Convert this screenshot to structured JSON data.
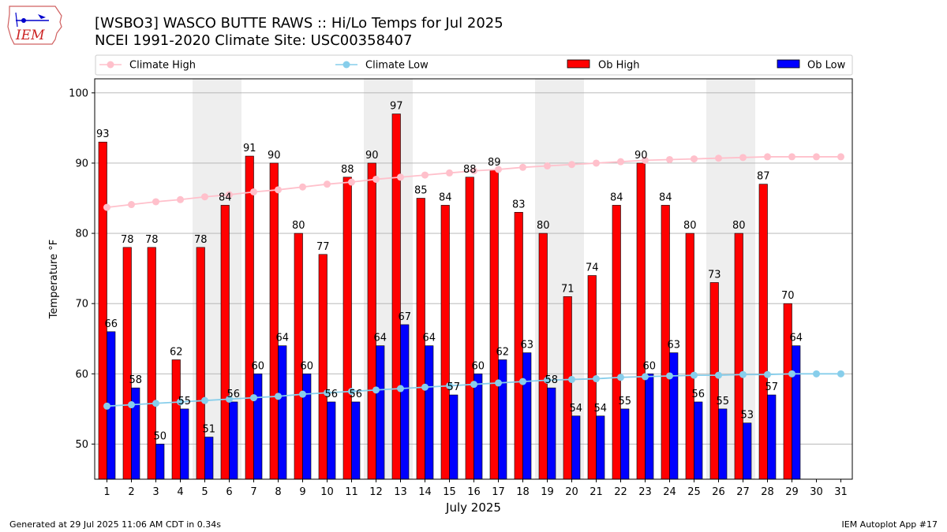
{
  "logo": {
    "text": "IEM"
  },
  "chart_data": {
    "type": "bar",
    "title_lines": [
      "[WSBO3] WASCO BUTTE RAWS :: Hi/Lo Temps for Jul 2025",
      "NCEI 1991-2020 Climate Site: USC00358407"
    ],
    "xlabel": "July 2025",
    "ylabel": "Temperature °F",
    "ylim": [
      45,
      102
    ],
    "yticks": [
      50,
      60,
      70,
      80,
      90,
      100
    ],
    "grid": "horizontal",
    "weekend_shading_days": [
      [
        5,
        6
      ],
      [
        12,
        13
      ],
      [
        19,
        20
      ],
      [
        26,
        27
      ]
    ],
    "days": [
      1,
      2,
      3,
      4,
      5,
      6,
      7,
      8,
      9,
      10,
      11,
      12,
      13,
      14,
      15,
      16,
      17,
      18,
      19,
      20,
      21,
      22,
      23,
      24,
      25,
      26,
      27,
      28,
      29,
      30,
      31
    ],
    "legend": {
      "climate_high": "Climate High",
      "climate_low": "Climate Low",
      "ob_high": "Ob High",
      "ob_low": "Ob Low"
    },
    "series": [
      {
        "name": "Ob High",
        "kind": "bar",
        "color": "#ff0000",
        "values": [
          93,
          78,
          78,
          62,
          78,
          84,
          91,
          90,
          80,
          77,
          88,
          90,
          97,
          85,
          84,
          88,
          89,
          83,
          80,
          71,
          74,
          84,
          90,
          84,
          80,
          73,
          80,
          87,
          70,
          null,
          null
        ]
      },
      {
        "name": "Ob Low",
        "kind": "bar",
        "color": "#0000ff",
        "values": [
          66,
          58,
          50,
          55,
          51,
          56,
          60,
          64,
          60,
          56,
          56,
          64,
          67,
          64,
          57,
          60,
          62,
          63,
          58,
          54,
          54,
          55,
          60,
          63,
          56,
          55,
          53,
          57,
          64,
          null,
          null
        ]
      },
      {
        "name": "Climate High",
        "kind": "line",
        "color": "#ffc0cb",
        "values": [
          83.7,
          84.1,
          84.5,
          84.8,
          85.2,
          85.5,
          85.9,
          86.2,
          86.6,
          87.0,
          87.3,
          87.7,
          88.0,
          88.3,
          88.6,
          88.9,
          89.1,
          89.4,
          89.6,
          89.8,
          90.0,
          90.2,
          90.4,
          90.5,
          90.6,
          90.7,
          90.8,
          90.9,
          90.9,
          90.9,
          90.9
        ]
      },
      {
        "name": "Climate Low",
        "kind": "line",
        "color": "#87ceeb",
        "values": [
          55.4,
          55.6,
          55.8,
          56.0,
          56.2,
          56.4,
          56.6,
          56.8,
          57.1,
          57.3,
          57.5,
          57.7,
          57.9,
          58.1,
          58.3,
          58.5,
          58.7,
          58.9,
          59.1,
          59.2,
          59.3,
          59.5,
          59.6,
          59.7,
          59.8,
          59.8,
          59.9,
          59.9,
          60.0,
          60.0,
          60.0
        ]
      }
    ]
  },
  "footer": {
    "left": "Generated at 29 Jul 2025 11:06 AM CDT in 0.34s",
    "right": "IEM Autoplot App #17"
  }
}
